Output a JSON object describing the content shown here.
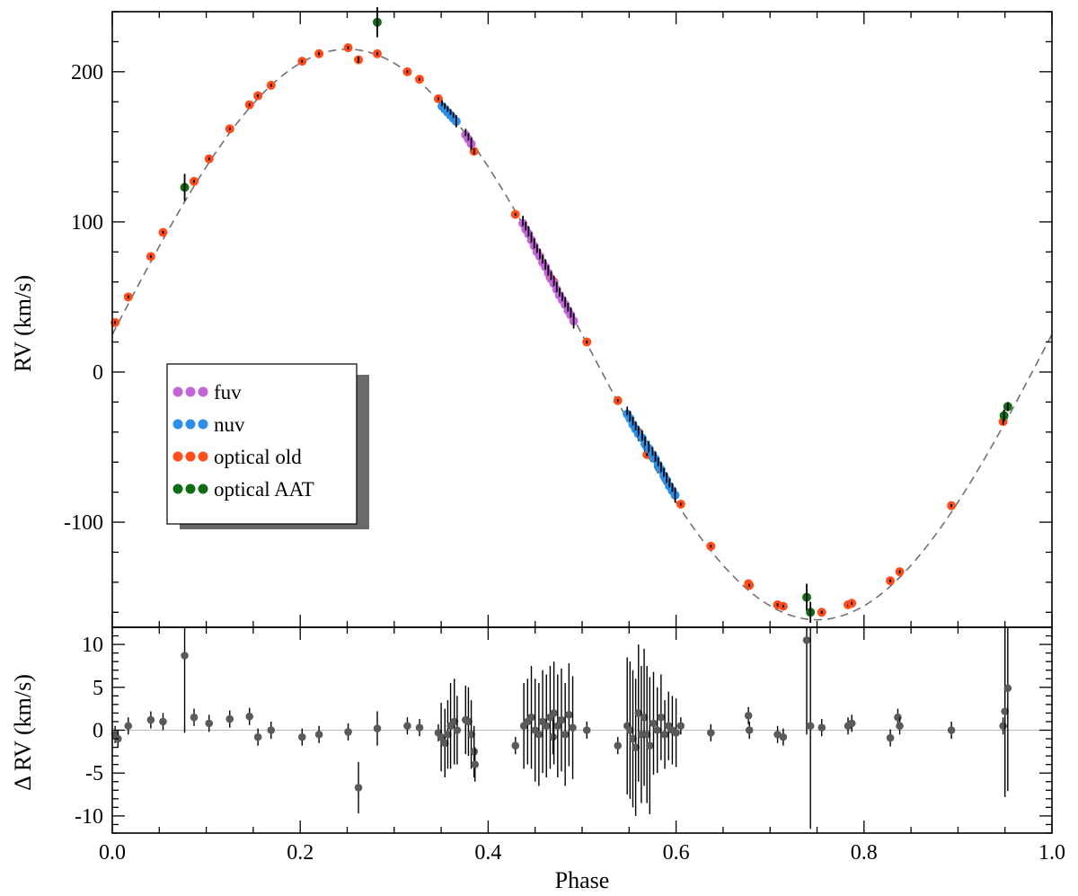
{
  "chart_data": [
    {
      "type": "scatter",
      "panel": "top",
      "xlabel": "",
      "ylabel": "RV (km/s)",
      "xlim": [
        0.0,
        1.0
      ],
      "ylim": [
        -170,
        240
      ],
      "yticks": [
        -100,
        0,
        100,
        200
      ],
      "ytick_labels": [
        "-100",
        "0",
        "100",
        "200"
      ],
      "model": {
        "style": "dashed",
        "color": "#707070",
        "gamma": 25,
        "K": 190,
        "phase_of_max": 0.25
      },
      "legend": {
        "placement": "middle-left",
        "entries": [
          {
            "label": "fuv",
            "color": "#c364d8"
          },
          {
            "label": "nuv",
            "color": "#2b8fe8"
          },
          {
            "label": "optical old",
            "color": "#ff4d1a"
          },
          {
            "label": "optical AAT",
            "color": "#0e6f12"
          }
        ]
      },
      "series": [
        {
          "name": "optical old",
          "color": "#ff4d1a",
          "x": [
            0.003,
            0.017,
            0.041,
            0.054,
            0.087,
            0.103,
            0.125,
            0.146,
            0.155,
            0.169,
            0.202,
            0.22,
            0.251,
            0.262,
            0.282,
            0.314,
            0.327,
            0.347,
            0.385,
            0.429,
            0.466,
            0.47,
            0.505,
            0.538,
            0.56,
            0.569,
            0.605,
            0.637,
            0.677,
            0.678,
            0.708,
            0.714,
            0.755,
            0.783,
            0.787,
            0.828,
            0.838,
            0.893,
            0.948
          ],
          "y": [
            33,
            50,
            77,
            93,
            127,
            142,
            162,
            178,
            184,
            191,
            207,
            212,
            216,
            208,
            212,
            200,
            195,
            182,
            147,
            105,
            63,
            60,
            20,
            -19,
            -40,
            -55,
            -88,
            -116,
            -141,
            -142,
            -155,
            -156,
            -160,
            -155,
            -154,
            -139,
            -133,
            -89,
            -33
          ],
          "err": [
            1,
            1,
            1,
            1,
            1,
            1,
            1,
            1,
            1,
            1,
            1,
            1,
            1,
            2,
            1,
            1,
            1,
            1,
            2,
            1,
            1,
            1,
            1,
            1,
            1,
            1,
            1,
            1,
            1,
            1,
            1,
            1,
            1,
            1,
            1,
            1,
            1,
            1,
            2
          ]
        },
        {
          "name": "nuv",
          "color": "#2b8fe8",
          "x": [
            0.351,
            0.354,
            0.357,
            0.36,
            0.363,
            0.366,
            0.548,
            0.551,
            0.554,
            0.557,
            0.56,
            0.564,
            0.567,
            0.571,
            0.575,
            0.578,
            0.581,
            0.584,
            0.587,
            0.59,
            0.593,
            0.596,
            0.599
          ],
          "y": [
            177,
            175,
            173,
            171,
            169,
            167,
            -28,
            -31,
            -35,
            -38,
            -41,
            -44,
            -48,
            -51,
            -55,
            -58,
            -62,
            -65,
            -69,
            -72,
            -76,
            -79,
            -82
          ],
          "err": [
            4,
            4,
            4,
            4,
            4,
            4,
            5,
            5,
            5,
            5,
            5,
            5,
            5,
            5,
            5,
            5,
            5,
            5,
            5,
            5,
            5,
            5,
            5
          ]
        },
        {
          "name": "fuv",
          "color": "#c364d8",
          "x": [
            0.376,
            0.379,
            0.382,
            0.437,
            0.44,
            0.443,
            0.446,
            0.449,
            0.452,
            0.455,
            0.458,
            0.461,
            0.464,
            0.467,
            0.47,
            0.473,
            0.476,
            0.479,
            0.482,
            0.485,
            0.488,
            0.491
          ],
          "y": [
            158,
            155,
            152,
            99,
            95,
            92,
            88,
            84,
            80,
            77,
            73,
            70,
            66,
            62,
            59,
            55,
            51,
            48,
            45,
            41,
            38,
            34
          ],
          "err": [
            4,
            4,
            4,
            5,
            5,
            5,
            5,
            5,
            5,
            5,
            5,
            5,
            5,
            5,
            5,
            5,
            5,
            5,
            5,
            5,
            5,
            5
          ]
        },
        {
          "name": "optical AAT",
          "color": "#0e6f12",
          "x": [
            0.077,
            0.282,
            0.739,
            0.743,
            0.949,
            0.953
          ],
          "y": [
            123,
            233,
            -150,
            -160,
            -29,
            -23
          ],
          "err": [
            9,
            10,
            9,
            7,
            4,
            3
          ]
        }
      ]
    },
    {
      "type": "scatter",
      "panel": "bottom",
      "xlabel": "Phase",
      "ylabel": "Δ RV (km/s)",
      "xlim": [
        0.0,
        1.0
      ],
      "ylim": [
        -12,
        12
      ],
      "xticks": [
        0.0,
        0.2,
        0.4,
        0.6,
        0.8,
        1.0
      ],
      "xtick_labels": [
        "0.0",
        "0.2",
        "0.4",
        "0.6",
        "0.8",
        "1.0"
      ],
      "yticks": [
        -10,
        -5,
        0,
        5,
        10
      ],
      "ytick_labels": [
        "-10",
        "-5",
        "0",
        "5",
        "10"
      ],
      "series": [
        {
          "name": "residuals",
          "color": "#5a5a5a",
          "x": [
            0.003,
            0.006,
            0.017,
            0.041,
            0.054,
            0.077,
            0.087,
            0.103,
            0.125,
            0.146,
            0.155,
            0.169,
            0.202,
            0.22,
            0.251,
            0.262,
            0.282,
            0.314,
            0.327,
            0.347,
            0.35,
            0.354,
            0.357,
            0.36,
            0.364,
            0.367,
            0.376,
            0.379,
            0.382,
            0.385,
            0.386,
            0.429,
            0.438,
            0.442,
            0.446,
            0.45,
            0.454,
            0.458,
            0.462,
            0.466,
            0.469,
            0.47,
            0.474,
            0.478,
            0.482,
            0.486,
            0.49,
            0.505,
            0.538,
            0.548,
            0.551,
            0.554,
            0.557,
            0.56,
            0.563,
            0.566,
            0.569,
            0.572,
            0.576,
            0.58,
            0.584,
            0.588,
            0.592,
            0.596,
            0.6,
            0.605,
            0.637,
            0.677,
            0.678,
            0.708,
            0.714,
            0.739,
            0.743,
            0.755,
            0.783,
            0.787,
            0.828,
            0.836,
            0.838,
            0.893,
            0.948,
            0.95,
            0.953
          ],
          "y": [
            -0.5,
            -1.0,
            0.5,
            1.2,
            1.0,
            8.7,
            1.5,
            0.8,
            1.3,
            1.6,
            -0.8,
            0.0,
            -0.8,
            -0.5,
            -0.2,
            -6.7,
            0.2,
            0.5,
            0.3,
            -0.3,
            -0.8,
            -1.5,
            -0.5,
            0.5,
            1.0,
            0.0,
            1.2,
            1.0,
            -0.5,
            -2.5,
            -4.0,
            -1.8,
            0.5,
            1.0,
            1.5,
            0.0,
            -0.5,
            1.0,
            0.5,
            1.5,
            -0.8,
            2.0,
            0.5,
            1.2,
            -0.5,
            1.8,
            0.3,
            0.0,
            -1.8,
            0.5,
            0.0,
            -1.0,
            -2.0,
            2.0,
            -0.5,
            1.5,
            -0.5,
            -1.8,
            0.8,
            0.0,
            1.5,
            -0.5,
            0.5,
            0.0,
            -0.3,
            0.5,
            -0.3,
            1.7,
            0.0,
            -0.5,
            -0.8,
            10.5,
            0.5,
            0.3,
            0.5,
            0.8,
            -0.9,
            1.5,
            0.5,
            0.0,
            0.5,
            2.2,
            4.9
          ],
          "err": [
            1,
            1,
            1,
            1,
            1,
            9,
            1,
            1,
            1,
            1,
            1,
            1,
            1,
            1,
            1,
            3,
            2,
            1,
            1,
            1,
            4,
            4,
            4,
            5,
            5,
            4,
            4,
            4,
            4,
            3,
            2,
            1,
            5,
            5,
            6,
            6,
            6,
            6,
            6,
            6,
            2,
            6,
            6,
            6,
            6,
            6,
            6,
            1,
            1,
            8,
            8,
            8,
            8,
            8,
            8,
            8,
            8,
            8,
            6,
            5,
            5,
            4,
            4,
            4,
            4,
            1,
            1,
            1,
            1,
            1,
            1,
            11,
            12,
            1,
            1,
            1,
            1,
            1,
            1,
            1,
            1,
            10,
            12
          ]
        }
      ]
    }
  ]
}
